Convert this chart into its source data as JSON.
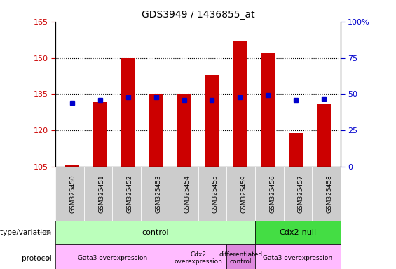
{
  "title": "GDS3949 / 1436855_at",
  "samples": [
    "GSM325450",
    "GSM325451",
    "GSM325452",
    "GSM325453",
    "GSM325454",
    "GSM325455",
    "GSM325459",
    "GSM325456",
    "GSM325457",
    "GSM325458"
  ],
  "counts": [
    106,
    132,
    150,
    135,
    135,
    143,
    157,
    152,
    119,
    131
  ],
  "percentile_ranks": [
    44,
    46,
    48,
    48,
    46,
    46,
    48,
    49,
    46,
    47
  ],
  "ylim_left": [
    105,
    165
  ],
  "ylim_right": [
    0,
    100
  ],
  "yticks_left": [
    105,
    120,
    135,
    150,
    165
  ],
  "yticks_right": [
    0,
    25,
    50,
    75,
    100
  ],
  "bar_color": "#cc0000",
  "dot_color": "#0000cc",
  "bar_bottom": 105,
  "genotype_labels": [
    {
      "text": "control",
      "start": 0,
      "end": 6,
      "color": "#bbffbb"
    },
    {
      "text": "Cdx2-null",
      "start": 7,
      "end": 9,
      "color": "#44dd44"
    }
  ],
  "protocol_labels": [
    {
      "text": "Gata3 overexpression",
      "start": 0,
      "end": 3,
      "color": "#ffbbff"
    },
    {
      "text": "Cdx2\noverexpression",
      "start": 4,
      "end": 5,
      "color": "#ffbbff"
    },
    {
      "text": "differentiated\ncontrol",
      "start": 6,
      "end": 6,
      "color": "#dd88dd"
    },
    {
      "text": "Gata3 overexpression",
      "start": 7,
      "end": 9,
      "color": "#ffbbff"
    }
  ],
  "tick_bg_color": "#cccccc",
  "tick_bg_color_cdx2": "#bbbbbb",
  "bg_color": "#ffffff",
  "tick_label_color_left": "#cc0000",
  "tick_label_color_right": "#0000cc",
  "label_left_text": "genotype/variation",
  "label_right_text": "protocol"
}
